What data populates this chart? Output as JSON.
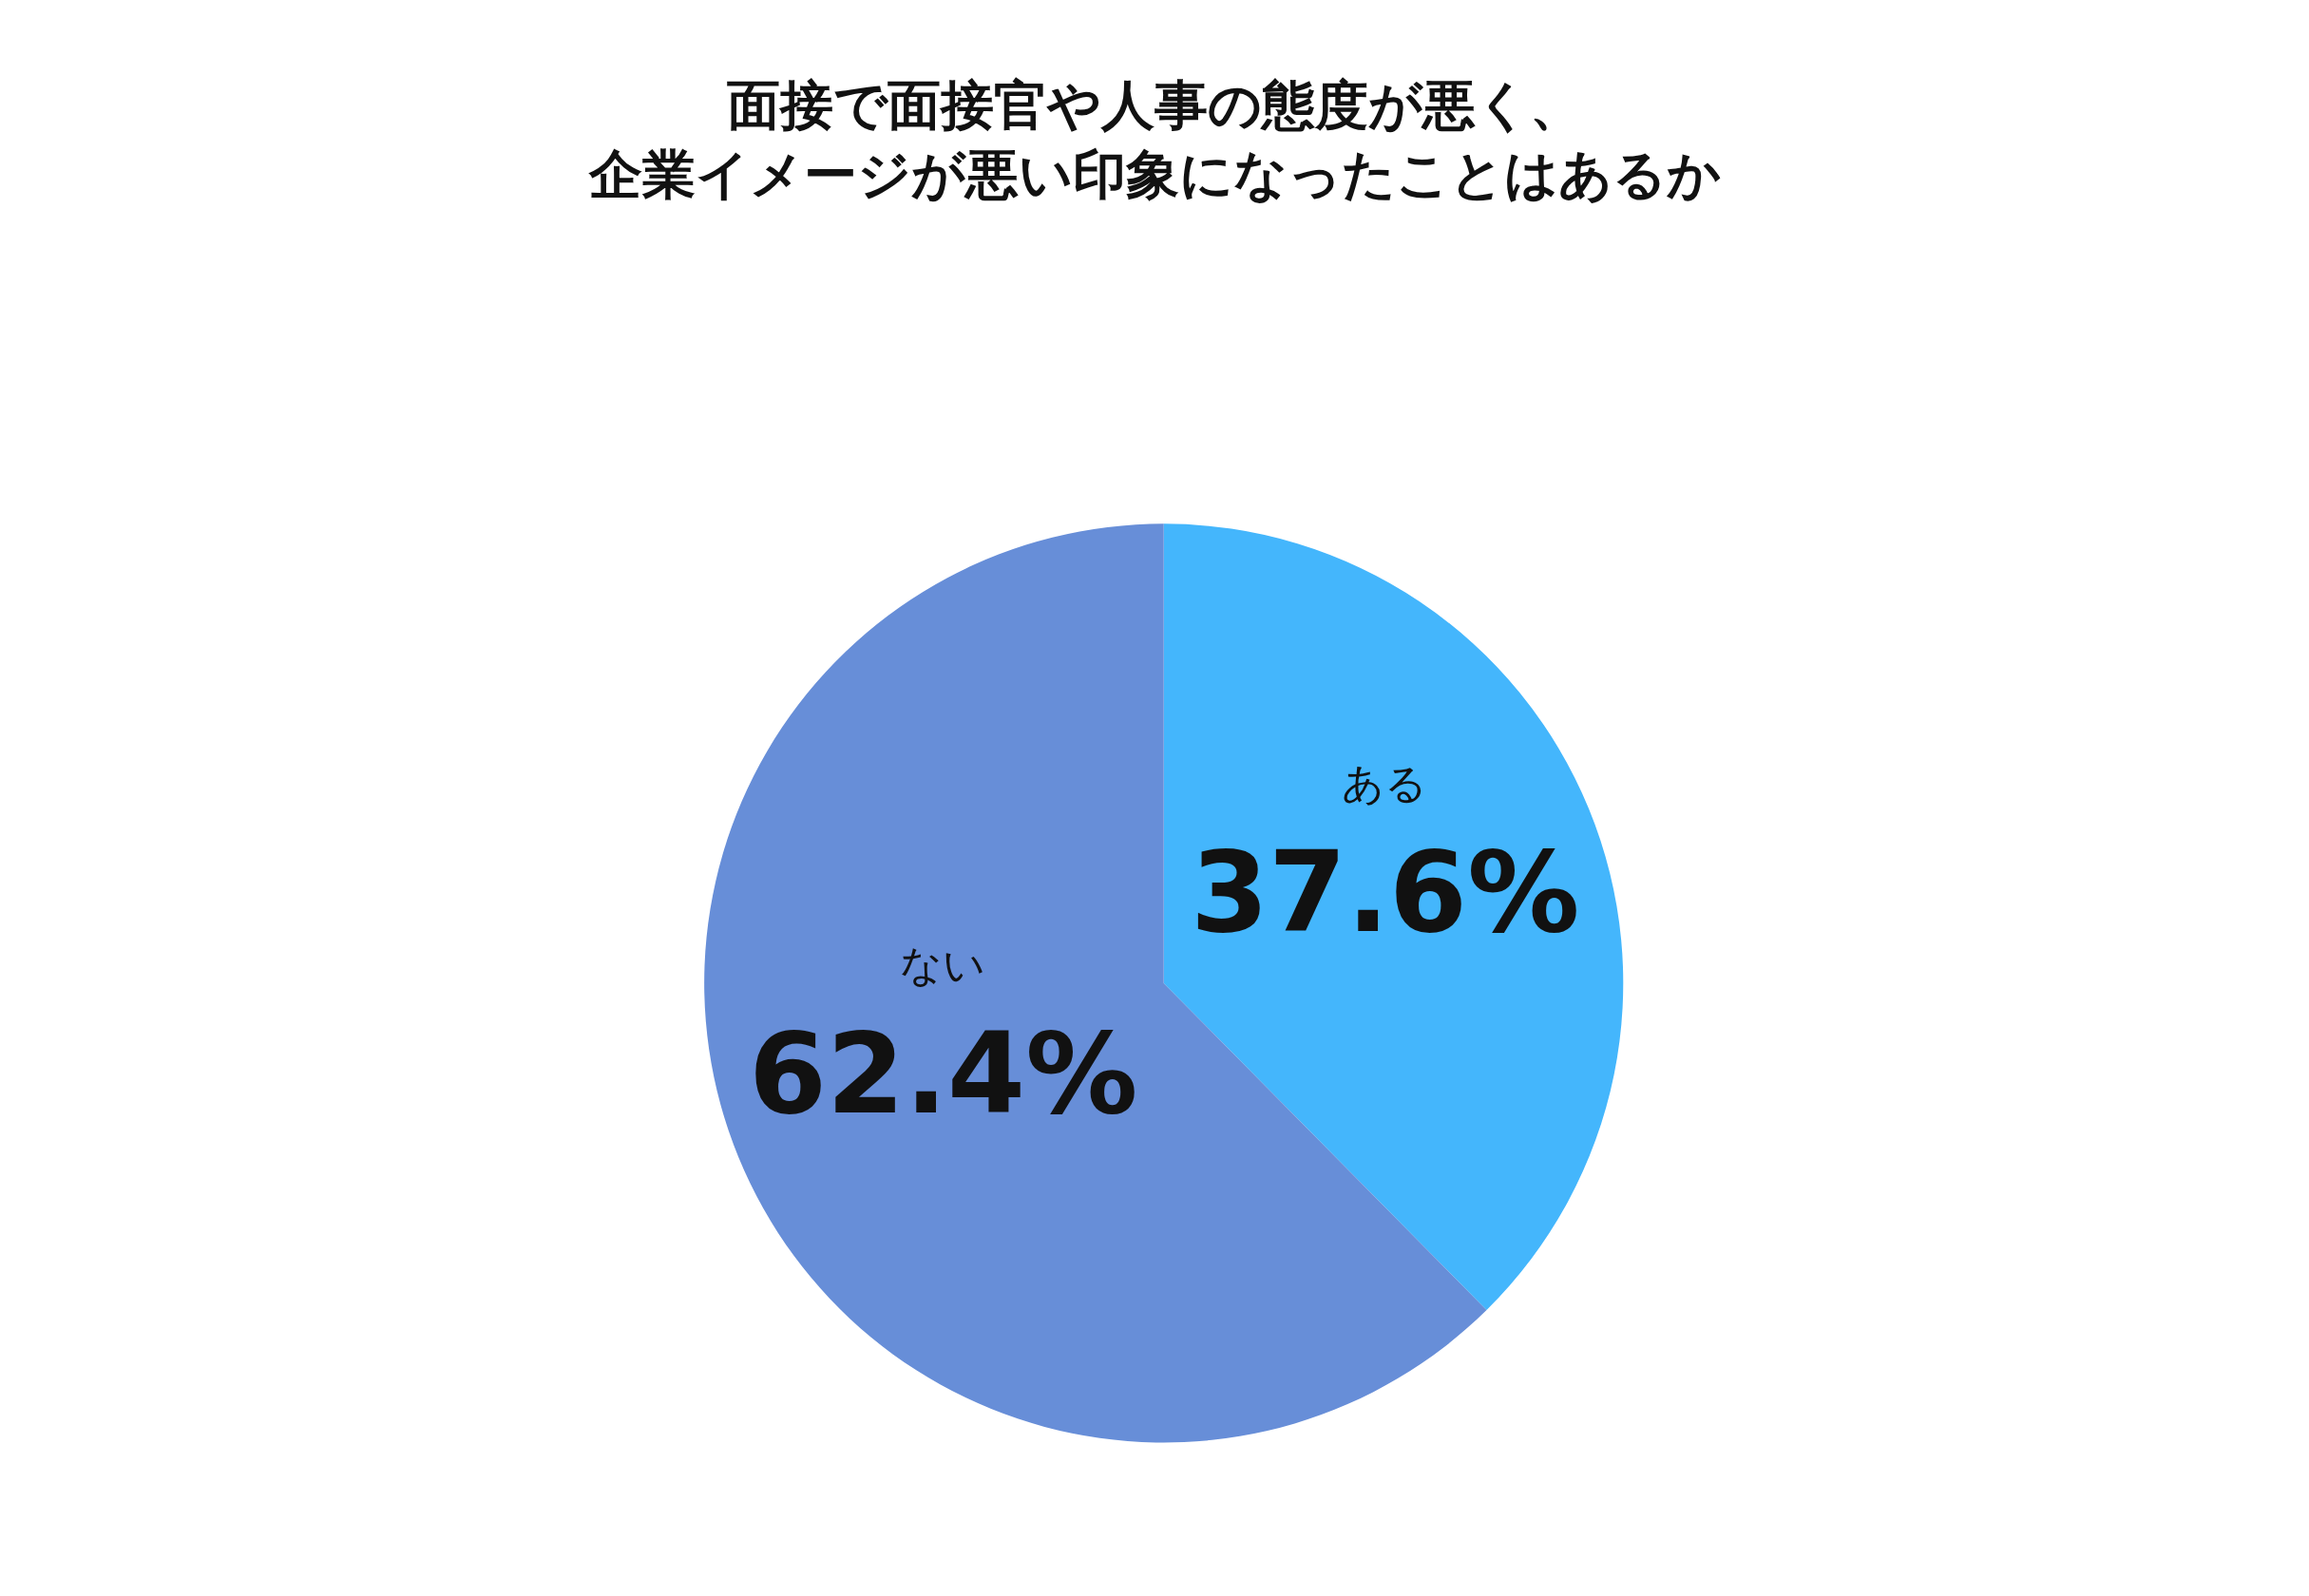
{
  "chart_data": {
    "type": "pie",
    "title": "面接で面接官や人事の態度が悪く、企業イメージが悪い印象になったことはあるか",
    "categories": [
      "ある",
      "ない"
    ],
    "values": [
      37.6,
      62.4
    ],
    "colors": [
      "#44b6fc",
      "#678ed8"
    ],
    "value_labels": [
      "37.6%",
      "62.4%"
    ],
    "legend": false
  }
}
